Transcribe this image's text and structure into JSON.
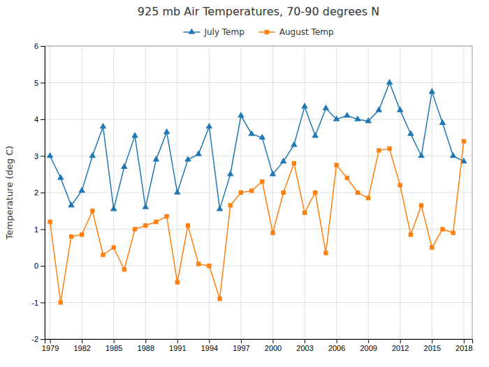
{
  "chart_data": {
    "type": "line",
    "title": "925 mb Air Temperatures, 70-90 degrees N",
    "ylabel": "Temperature (deg C)",
    "x": [
      1979,
      1980,
      1981,
      1982,
      1983,
      1984,
      1985,
      1986,
      1987,
      1988,
      1989,
      1990,
      1991,
      1992,
      1993,
      1994,
      1995,
      1996,
      1997,
      1998,
      1999,
      2000,
      2001,
      2002,
      2003,
      2004,
      2005,
      2006,
      2007,
      2008,
      2009,
      2010,
      2011,
      2012,
      2013,
      2014,
      2015,
      2016,
      2017,
      2018
    ],
    "series": [
      {
        "name": "July Temp",
        "marker": "triangle",
        "values": [
          3.0,
          2.4,
          1.65,
          2.05,
          3.0,
          3.8,
          1.55,
          2.7,
          3.55,
          1.6,
          2.9,
          3.65,
          2.0,
          2.9,
          3.05,
          3.8,
          1.55,
          2.5,
          4.1,
          3.6,
          3.5,
          2.5,
          2.85,
          3.3,
          4.35,
          3.55,
          4.3,
          4.0,
          4.1,
          4.0,
          3.95,
          4.25,
          5.0,
          4.25,
          3.6,
          3.0,
          4.75,
          3.9,
          3.0,
          2.85
        ]
      },
      {
        "name": "August Temp",
        "marker": "square",
        "values": [
          1.2,
          -1.0,
          0.8,
          0.85,
          1.5,
          0.3,
          0.5,
          -0.1,
          1.0,
          1.1,
          1.2,
          1.35,
          -0.45,
          1.1,
          0.05,
          0.0,
          -0.9,
          1.65,
          2.0,
          2.05,
          2.3,
          0.9,
          2.0,
          2.8,
          1.45,
          2.0,
          0.35,
          2.75,
          2.4,
          2.0,
          1.85,
          3.15,
          3.2,
          2.2,
          0.85,
          1.65,
          0.5,
          1.0,
          0.9,
          3.4
        ]
      }
    ],
    "xlim": [
      1978.5,
      2018.8
    ],
    "ylim": [
      -2,
      6
    ],
    "xticks": [
      1979,
      1982,
      1985,
      1988,
      1991,
      1994,
      1997,
      2000,
      2003,
      2006,
      2009,
      2012,
      2015,
      2018
    ],
    "yticks": [
      -2,
      -1,
      0,
      1,
      2,
      3,
      4,
      5,
      6
    ],
    "grid": true,
    "legend": "top"
  }
}
